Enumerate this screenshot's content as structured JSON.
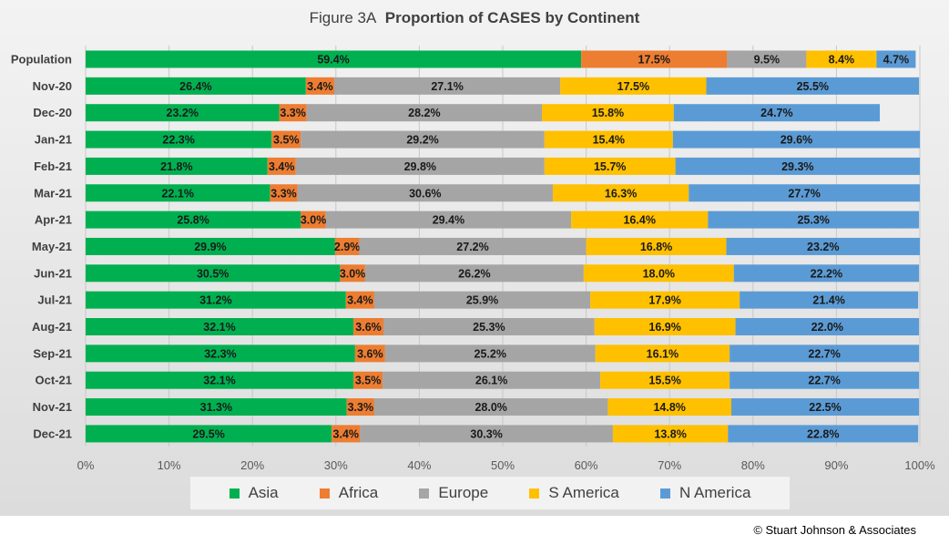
{
  "chart_data": {
    "type": "bar",
    "orientation": "horizontal",
    "stacked": true,
    "title_prefix": "Figure  3A",
    "title": "Proportion of CASES by Continent",
    "categories": [
      "Population",
      "Nov-20",
      "Dec-20",
      "Jan-21",
      "Feb-21",
      "Mar-21",
      "Apr-21",
      "May-21",
      "Jun-21",
      "Jul-21",
      "Aug-21",
      "Sep-21",
      "Oct-21",
      "Nov-21",
      "Dec-21"
    ],
    "series": [
      {
        "name": "Asia",
        "color": "#00b050",
        "values": [
          59.4,
          26.4,
          23.2,
          22.3,
          21.8,
          22.1,
          25.8,
          29.9,
          30.5,
          31.2,
          32.1,
          32.3,
          32.1,
          31.3,
          29.5
        ]
      },
      {
        "name": "Africa",
        "color": "#ed7d31",
        "values": [
          17.5,
          3.4,
          3.3,
          3.5,
          3.4,
          3.3,
          3.0,
          2.9,
          3.0,
          3.4,
          3.6,
          3.6,
          3.5,
          3.3,
          3.4
        ]
      },
      {
        "name": "Europe",
        "color": "#a5a5a5",
        "values": [
          9.5,
          27.1,
          28.2,
          29.2,
          29.8,
          30.6,
          29.4,
          27.2,
          26.2,
          25.9,
          25.3,
          25.2,
          26.1,
          28.0,
          30.3
        ]
      },
      {
        "name": "S America",
        "color": "#ffc000",
        "values": [
          8.4,
          17.5,
          15.8,
          15.4,
          15.7,
          16.3,
          16.4,
          16.8,
          18.0,
          17.9,
          16.9,
          16.1,
          15.5,
          14.8,
          13.8
        ]
      },
      {
        "name": "N America",
        "color": "#5b9bd5",
        "values": [
          4.7,
          25.5,
          24.7,
          29.6,
          29.3,
          27.7,
          25.3,
          23.2,
          22.2,
          21.4,
          22.0,
          22.7,
          22.7,
          22.5,
          22.8
        ]
      }
    ],
    "x_ticks": [
      "0%",
      "10%",
      "20%",
      "30%",
      "40%",
      "50%",
      "60%",
      "70%",
      "80%",
      "90%",
      "100%"
    ],
    "xlim": [
      0,
      100
    ],
    "grid": true,
    "legend_position": "bottom"
  },
  "footer": {
    "copyright": "© Stuart Johnson & Associates"
  }
}
